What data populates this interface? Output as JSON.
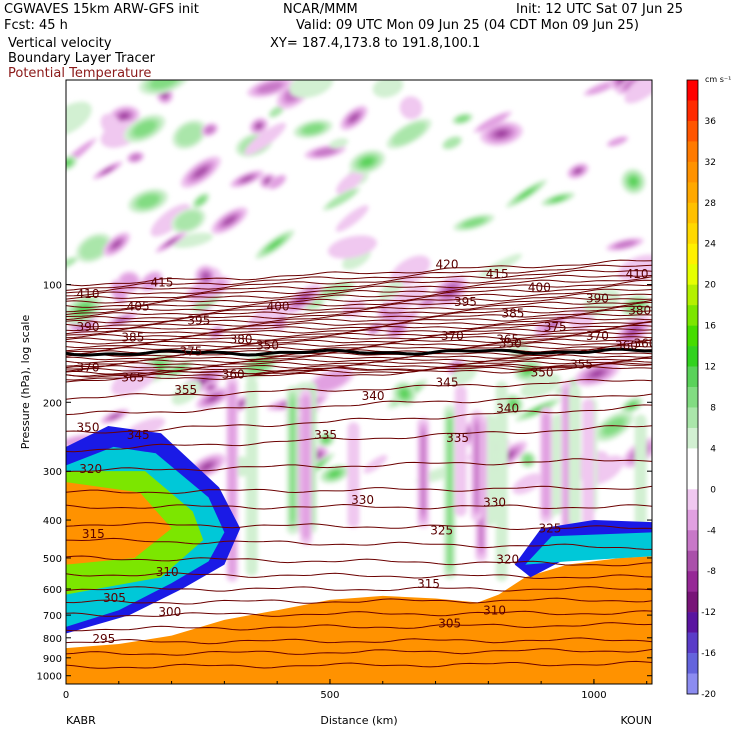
{
  "header": {
    "model": "CGWAVES 15km ARW-GFS init",
    "forecast": "Fcst:    45 h",
    "field1": "Vertical velocity",
    "field2": "Boundary Layer Tracer",
    "field3": "Potential Temperature",
    "center": "NCAR/MMM",
    "init": "Init: 12 UTC Sat 07 Jun 25",
    "valid": "Valid: 09 UTC Mon 09 Jun 25 (04 CDT Mon 09 Jun 25)",
    "xy": "XY= 187.4,173.8 to 191.8,100.1"
  },
  "colors": {
    "theta": "#6b0000",
    "tracer_dark": "#1a1ae6",
    "tracer_mid": "#00c8d8",
    "tracer_low": "#ff8c00",
    "tracer_high": "#ffa500"
  },
  "chart_data": {
    "type": "heatmap",
    "xlabel": "Distance (km)",
    "ylabel": "Pressure (hPa), log scale",
    "x_ticks": [
      "0",
      "500",
      "1000"
    ],
    "x_tick_values": [
      0,
      500,
      1000
    ],
    "xlim": [
      0,
      1110
    ],
    "y_ticks": [
      "100",
      "200",
      "300",
      "400",
      "500",
      "600",
      "700",
      "800",
      "900",
      "1000"
    ],
    "y_tick_values": [
      100,
      200,
      300,
      400,
      500,
      600,
      700,
      800,
      900,
      1000
    ],
    "ylim": [
      1050,
      30
    ],
    "y_scale": "log",
    "left_station": "KABR",
    "right_station": "KOUN",
    "colorbar": {
      "unit": "cm s⁻¹",
      "labels": [
        "36",
        "32",
        "28",
        "24",
        "20",
        "16",
        "12",
        "8",
        "4",
        "0",
        "-4",
        "-8",
        "-12",
        "-16",
        "-20"
      ],
      "label_values": [
        36,
        32,
        28,
        24,
        20,
        16,
        12,
        8,
        4,
        0,
        -4,
        -8,
        -12,
        -16,
        -20
      ],
      "colors": [
        "#ff0000",
        "#ff2a00",
        "#ff5500",
        "#ff7a00",
        "#ff9200",
        "#ffa800",
        "#ffc000",
        "#ffd800",
        "#fff000",
        "#e6ff00",
        "#b4f000",
        "#7ce600",
        "#46dc00",
        "#32d21e",
        "#5ad25a",
        "#82dc82",
        "#aae6aa",
        "#d2f0d2",
        "#ffffff",
        "#ffffff",
        "#f0c8f0",
        "#e1a0e1",
        "#c878c8",
        "#aa50aa",
        "#962896",
        "#781478",
        "#5a14a0",
        "#5a3cc8",
        "#6464dc",
        "#8c8cf0"
      ]
    },
    "theta_labels": [
      {
        "text": "420",
        "x": 700,
        "p": 90
      },
      {
        "text": "415",
        "x": 160,
        "p": 100
      },
      {
        "text": "415",
        "x": 795,
        "p": 95
      },
      {
        "text": "410",
        "x": 20,
        "p": 107
      },
      {
        "text": "410",
        "x": 1060,
        "p": 95
      },
      {
        "text": "405",
        "x": 115,
        "p": 115
      },
      {
        "text": "400",
        "x": 380,
        "p": 115
      },
      {
        "text": "400",
        "x": 875,
        "p": 103
      },
      {
        "text": "395",
        "x": 230,
        "p": 125
      },
      {
        "text": "395",
        "x": 735,
        "p": 112
      },
      {
        "text": "390",
        "x": 20,
        "p": 130
      },
      {
        "text": "390",
        "x": 985,
        "p": 110
      },
      {
        "text": "385",
        "x": 105,
        "p": 138
      },
      {
        "text": "385",
        "x": 825,
        "p": 120
      },
      {
        "text": "380",
        "x": 310,
        "p": 140
      },
      {
        "text": "380",
        "x": 1065,
        "p": 118
      },
      {
        "text": "375",
        "x": 215,
        "p": 150
      },
      {
        "text": "375",
        "x": 905,
        "p": 130
      },
      {
        "text": "370",
        "x": 20,
        "p": 165
      },
      {
        "text": "370",
        "x": 710,
        "p": 137
      },
      {
        "text": "370",
        "x": 985,
        "p": 137
      },
      {
        "text": "365",
        "x": 105,
        "p": 175
      },
      {
        "text": "365",
        "x": 815,
        "p": 140
      },
      {
        "text": "360",
        "x": 295,
        "p": 172
      },
      {
        "text": "360",
        "x": 1040,
        "p": 145
      },
      {
        "text": "355",
        "x": 205,
        "p": 188
      },
      {
        "text": "355",
        "x": 955,
        "p": 162
      },
      {
        "text": "350",
        "x": 20,
        "p": 235
      },
      {
        "text": "350",
        "x": 880,
        "p": 170
      },
      {
        "text": "345",
        "x": 115,
        "p": 245
      },
      {
        "text": "345",
        "x": 700,
        "p": 180
      },
      {
        "text": "340",
        "x": 560,
        "p": 195
      },
      {
        "text": "340",
        "x": 815,
        "p": 210
      },
      {
        "text": "335",
        "x": 470,
        "p": 245
      },
      {
        "text": "335",
        "x": 720,
        "p": 250
      },
      {
        "text": "330",
        "x": 540,
        "p": 360
      },
      {
        "text": "330",
        "x": 790,
        "p": 365
      },
      {
        "text": "325",
        "x": 690,
        "p": 430
      },
      {
        "text": "325",
        "x": 895,
        "p": 425
      },
      {
        "text": "320",
        "x": 25,
        "p": 300
      },
      {
        "text": "320",
        "x": 815,
        "p": 510
      },
      {
        "text": "315",
        "x": 30,
        "p": 440
      },
      {
        "text": "315",
        "x": 665,
        "p": 590
      },
      {
        "text": "310",
        "x": 170,
        "p": 550
      },
      {
        "text": "310",
        "x": 790,
        "p": 690
      },
      {
        "text": "305",
        "x": 705,
        "p": 745
      },
      {
        "text": "305",
        "x": 70,
        "p": 640
      },
      {
        "text": "300",
        "x": 175,
        "p": 695
      },
      {
        "text": "295",
        "x": 50,
        "p": 815
      },
      {
        "text": "350",
        "x": 360,
        "p": 145
      },
      {
        "text": "350",
        "x": 820,
        "p": 143
      },
      {
        "text": "360",
        "x": 1075,
        "p": 143
      }
    ]
  }
}
